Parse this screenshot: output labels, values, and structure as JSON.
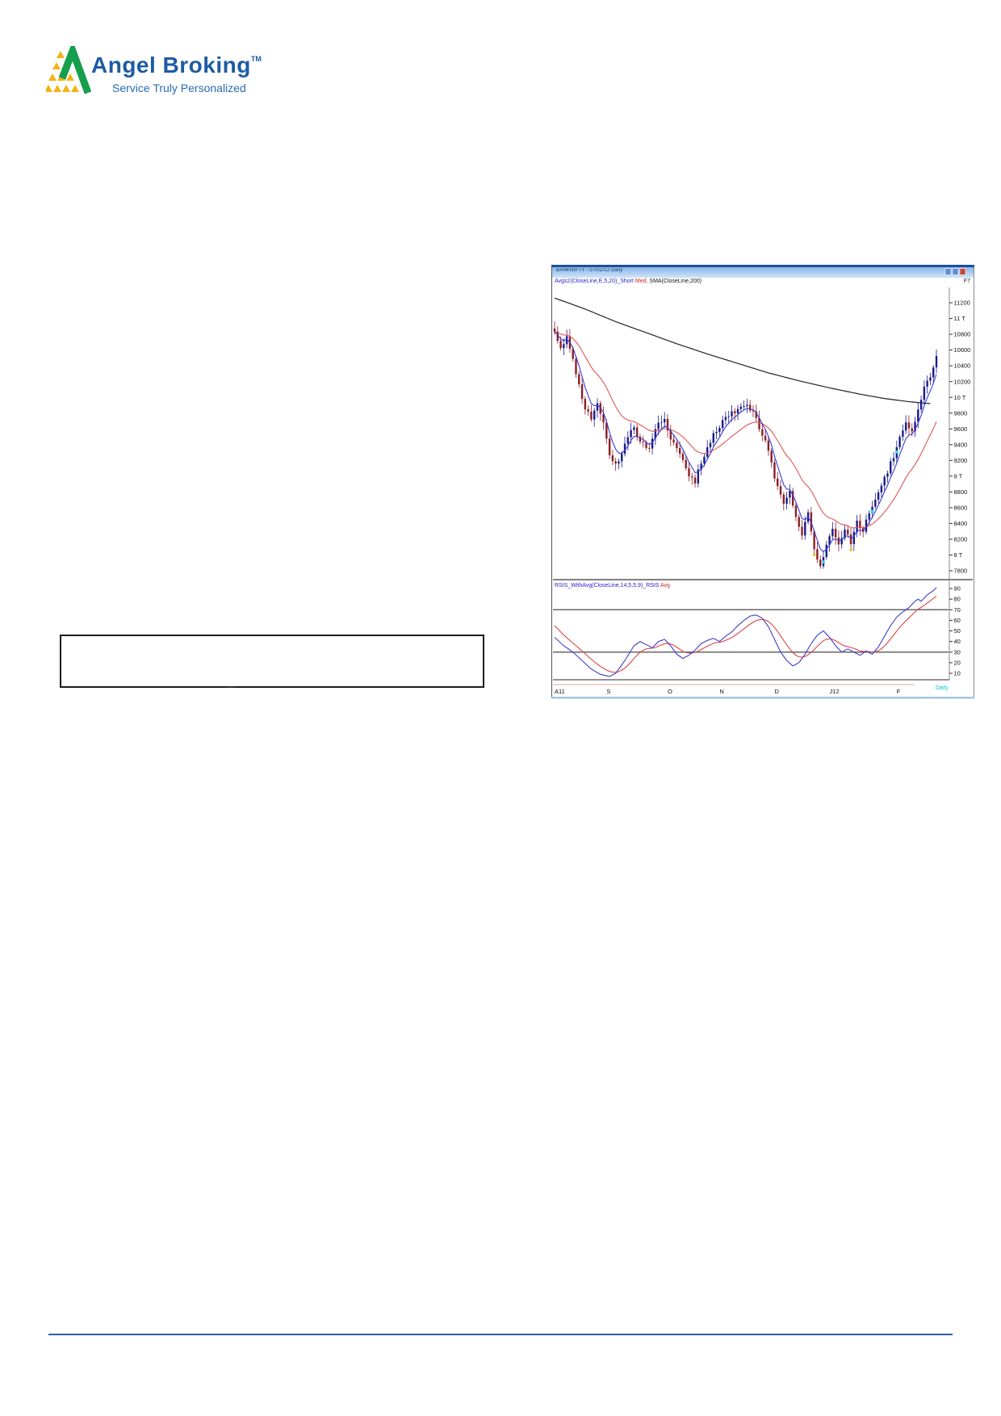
{
  "logo": {
    "brand": "Angel Broking",
    "tm": "TM",
    "tagline": "Service Truly Personalized",
    "brand_color": "#1d5ba5",
    "green": "#159e4c",
    "yellow": "#f2b414"
  },
  "chart": {
    "window_title": "BANKNIFTY - 07/02/12  Daily",
    "fkey": "F7",
    "price_label_blue": "Avgs2(CloseLine,E,5,20)_Short",
    "price_label_red": " Med,",
    "price_label_black": " SMA(CloseLine,200)",
    "rsi_label_blue": "RSIS_WithAvg(CloseLine,14,5,5,9)_RSIS",
    "rsi_label_red": " Avg",
    "periodicity": "Daily"
  },
  "chart_data": {
    "type": "candlestick",
    "title": "BANKNIFTY - 07/02/12",
    "panes": [
      "price with EMA(5) short, EMA(20) med, SMA(200)",
      "RSI(14) with Avg"
    ],
    "legend_position": "top-left of each pane",
    "grid": "RSI pane horizontal lines at 70 and 30",
    "bars": 126,
    "price_range": [
      7700,
      11400
    ],
    "price_axis": [
      {
        "label": "11200",
        "value": 11200
      },
      {
        "label": "11 T",
        "value": 11000
      },
      {
        "label": "10800",
        "value": 10800
      },
      {
        "label": "10600",
        "value": 10600
      },
      {
        "label": "10400",
        "value": 10400
      },
      {
        "label": "10200",
        "value": 10200
      },
      {
        "label": "10 T",
        "value": 10000
      },
      {
        "label": "9800",
        "value": 9800
      },
      {
        "label": "9600",
        "value": 9600
      },
      {
        "label": "9400",
        "value": 9400
      },
      {
        "label": "9200",
        "value": 9200
      },
      {
        "label": "9 T",
        "value": 9000
      },
      {
        "label": "8800",
        "value": 8800
      },
      {
        "label": "8600",
        "value": 8600
      },
      {
        "label": "8400",
        "value": 8400
      },
      {
        "label": "8200",
        "value": 8200
      },
      {
        "label": "8 T",
        "value": 8000
      },
      {
        "label": "7800",
        "value": 7800
      }
    ],
    "rsi_axis": [
      {
        "label": "90",
        "value": 90
      },
      {
        "label": "80",
        "value": 80
      },
      {
        "label": "70",
        "value": 70
      },
      {
        "label": "60",
        "value": 60
      },
      {
        "label": "50",
        "value": 50
      },
      {
        "label": "40",
        "value": 40
      },
      {
        "label": "30",
        "value": 30
      },
      {
        "label": "20",
        "value": 20
      },
      {
        "label": "10",
        "value": 10
      }
    ],
    "x_axis": [
      {
        "label": "A11",
        "bar": 0
      },
      {
        "label": "S",
        "bar": 17
      },
      {
        "label": "O",
        "bar": 37
      },
      {
        "label": "N",
        "bar": 54
      },
      {
        "label": "D",
        "bar": 72
      },
      {
        "label": "J12",
        "bar": 90
      },
      {
        "label": "F",
        "bar": 112
      }
    ],
    "close_anchors": [
      [
        0,
        10850
      ],
      [
        2,
        10650
      ],
      [
        4,
        10760
      ],
      [
        6,
        10480
      ],
      [
        8,
        10150
      ],
      [
        10,
        9880
      ],
      [
        12,
        9700
      ],
      [
        14,
        9900
      ],
      [
        16,
        9680
      ],
      [
        18,
        9280
      ],
      [
        20,
        9130
      ],
      [
        22,
        9300
      ],
      [
        24,
        9520
      ],
      [
        26,
        9620
      ],
      [
        28,
        9430
      ],
      [
        31,
        9330
      ],
      [
        34,
        9680
      ],
      [
        36,
        9720
      ],
      [
        38,
        9480
      ],
      [
        41,
        9260
      ],
      [
        44,
        9020
      ],
      [
        46,
        8930
      ],
      [
        48,
        9180
      ],
      [
        50,
        9380
      ],
      [
        53,
        9580
      ],
      [
        56,
        9750
      ],
      [
        59,
        9830
      ],
      [
        62,
        9910
      ],
      [
        64,
        9860
      ],
      [
        66,
        9720
      ],
      [
        69,
        9440
      ],
      [
        71,
        9150
      ],
      [
        73,
        8860
      ],
      [
        75,
        8620
      ],
      [
        77,
        8820
      ],
      [
        79,
        8460
      ],
      [
        81,
        8260
      ],
      [
        83,
        8520
      ],
      [
        85,
        8080
      ],
      [
        87,
        7830
      ],
      [
        89,
        8120
      ],
      [
        91,
        8360
      ],
      [
        93,
        8100
      ],
      [
        95,
        8320
      ],
      [
        97,
        8160
      ],
      [
        99,
        8420
      ],
      [
        101,
        8310
      ],
      [
        103,
        8560
      ],
      [
        105,
        8710
      ],
      [
        107,
        8910
      ],
      [
        109,
        9060
      ],
      [
        111,
        9260
      ],
      [
        113,
        9510
      ],
      [
        115,
        9690
      ],
      [
        117,
        9590
      ],
      [
        119,
        9860
      ],
      [
        121,
        10110
      ],
      [
        123,
        10260
      ],
      [
        125,
        10500
      ]
    ],
    "sma200_anchors": [
      [
        0,
        11260
      ],
      [
        10,
        11120
      ],
      [
        20,
        10960
      ],
      [
        30,
        10820
      ],
      [
        40,
        10680
      ],
      [
        50,
        10550
      ],
      [
        60,
        10430
      ],
      [
        70,
        10310
      ],
      [
        80,
        10210
      ],
      [
        90,
        10120
      ],
      [
        100,
        10040
      ],
      [
        108,
        9985
      ],
      [
        116,
        9945
      ],
      [
        123,
        9920
      ]
    ],
    "rsi_anchors": [
      [
        0,
        44
      ],
      [
        3,
        36
      ],
      [
        6,
        30
      ],
      [
        9,
        22
      ],
      [
        12,
        14
      ],
      [
        15,
        9
      ],
      [
        18,
        7
      ],
      [
        20,
        10
      ],
      [
        23,
        22
      ],
      [
        26,
        36
      ],
      [
        28,
        40
      ],
      [
        30,
        37
      ],
      [
        32,
        34
      ],
      [
        34,
        40
      ],
      [
        36,
        42
      ],
      [
        38,
        36
      ],
      [
        40,
        28
      ],
      [
        42,
        24
      ],
      [
        44,
        27
      ],
      [
        46,
        32
      ],
      [
        48,
        38
      ],
      [
        50,
        41
      ],
      [
        52,
        43
      ],
      [
        54,
        40
      ],
      [
        56,
        45
      ],
      [
        58,
        49
      ],
      [
        60,
        55
      ],
      [
        62,
        60
      ],
      [
        64,
        64
      ],
      [
        66,
        65
      ],
      [
        68,
        62
      ],
      [
        70,
        54
      ],
      [
        72,
        42
      ],
      [
        74,
        30
      ],
      [
        76,
        22
      ],
      [
        78,
        17
      ],
      [
        80,
        20
      ],
      [
        82,
        28
      ],
      [
        84,
        38
      ],
      [
        86,
        46
      ],
      [
        88,
        50
      ],
      [
        90,
        44
      ],
      [
        92,
        36
      ],
      [
        94,
        30
      ],
      [
        96,
        33
      ],
      [
        98,
        30
      ],
      [
        100,
        27
      ],
      [
        102,
        31
      ],
      [
        104,
        28
      ],
      [
        106,
        35
      ],
      [
        108,
        45
      ],
      [
        110,
        55
      ],
      [
        112,
        63
      ],
      [
        114,
        68
      ],
      [
        116,
        72
      ],
      [
        118,
        78
      ],
      [
        119,
        80
      ],
      [
        120,
        78
      ],
      [
        122,
        84
      ],
      [
        124,
        88
      ],
      [
        125,
        91
      ]
    ],
    "rsi_gridlines": [
      70,
      30
    ],
    "markers": {
      "cyan_bars": [
        88,
        104,
        112
      ],
      "yellow_bars": [
        85,
        97
      ]
    },
    "colors": {
      "up_candle": "#1a1a8c",
      "down_candle": "#8b1f24",
      "ema_short": "#3a3ad6",
      "ema_med": "#e25555",
      "sma200": "#222222",
      "rsi": "#4040cc",
      "rsi_avg": "#dd4444",
      "daily_label": "#00c8c8",
      "titlebar_top": "#1d4f9e"
    }
  },
  "footer": {
    "rule_color": "#2e5fa8"
  }
}
